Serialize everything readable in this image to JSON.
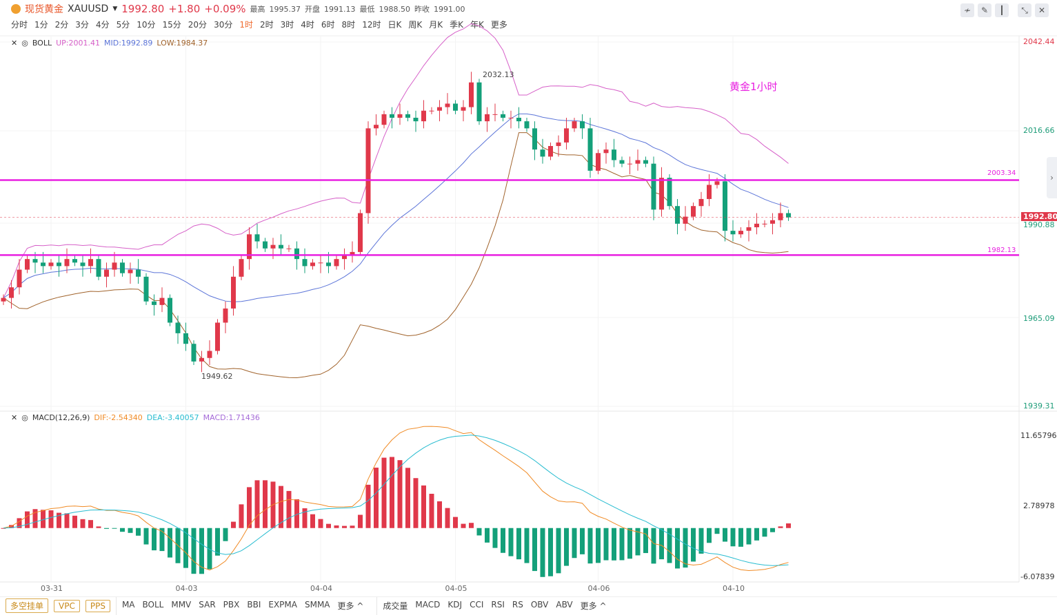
{
  "header": {
    "name": "现货黄金",
    "symbol": "XAUUSD",
    "price": "1992.80",
    "change": "+1.80",
    "change_pct": "+0.09%",
    "high_label": "最高",
    "high": "1995.37",
    "open_label": "开盘",
    "open": "1991.13",
    "low_label": "最低",
    "low": "1988.50",
    "prev_label": "昨收",
    "prev": "1991.00"
  },
  "timeframes": [
    "分时",
    "1分",
    "2分",
    "3分",
    "4分",
    "5分",
    "10分",
    "15分",
    "20分",
    "30分",
    "1时",
    "2时",
    "3时",
    "4时",
    "6时",
    "8时",
    "12时",
    "日K",
    "周K",
    "月K",
    "季K",
    "年K",
    "更多"
  ],
  "active_timeframe": "1时",
  "toolbar_icons": [
    "indicator-icon",
    "draw-icon",
    "candle-type-icon",
    "collapse-icon",
    "close-icon"
  ],
  "boll": {
    "name": "BOLL",
    "up": "UP:2001.41",
    "mid": "MID:1992.89",
    "low": "LOW:1984.37",
    "colors": {
      "up": "#d65fc8",
      "mid": "#5b74d8",
      "low": "#a0622a"
    }
  },
  "macd": {
    "name": "MACD(12,26,9)",
    "dif": "DIF:-2.54340",
    "dea": "DEA:-3.40057",
    "macd": "MACD:1.71436",
    "colors": {
      "dif": "#f08a24",
      "dea": "#27bcd0",
      "macd": "#a56ad8"
    }
  },
  "price_axis": [
    "2042.44",
    "2016.66",
    "1990.88",
    "1965.09",
    "1939.31"
  ],
  "macd_axis": [
    "11.65796",
    "2.78978",
    "-6.07839"
  ],
  "current_price_tag": "1992.80",
  "hlines": [
    {
      "value": 2003.34,
      "label": "2003.34"
    },
    {
      "value": 1982.13,
      "label": "1982.13"
    }
  ],
  "annotation": "黄金1小时",
  "markers": {
    "high": "2032.13",
    "low": "1949.62"
  },
  "date_labels": [
    {
      "label": "03-31",
      "index": 6
    },
    {
      "label": "04-03",
      "index": 23
    },
    {
      "label": "04-04",
      "index": 40
    },
    {
      "label": "04-05",
      "index": 57
    },
    {
      "label": "04-06",
      "index": 75
    },
    {
      "label": "04-10",
      "index": 92
    }
  ],
  "bottom": {
    "order_buttons": [
      "多空挂单",
      "VPC",
      "PPS"
    ],
    "main_indicators": [
      "MA",
      "BOLL",
      "MMV",
      "SAR",
      "PBX",
      "BBI",
      "EXPMA",
      "SMMA",
      "更多 ^"
    ],
    "sub_indicators": [
      "成交量",
      "MACD",
      "KDJ",
      "CCI",
      "RSI",
      "RS",
      "OBV",
      "ABV",
      "更多 ^"
    ]
  },
  "colors": {
    "up": "#e0384a",
    "down": "#14a07a",
    "hline": "#e81ee0"
  },
  "chart_data": {
    "type": "candlestick",
    "ylim": [
      1939.31,
      2042.44
    ],
    "macd_ylim": [
      -6.07839,
      11.65796
    ],
    "closes": [
      1970,
      1973,
      1978,
      1981,
      1980,
      1979,
      1980,
      1979,
      1981,
      1980,
      1979,
      1981,
      1976,
      1978,
      1980,
      1977,
      1978,
      1976,
      1969,
      1968,
      1970,
      1963,
      1960,
      1957,
      1952,
      1953,
      1955,
      1963,
      1967,
      1976,
      1981,
      1988,
      1986,
      1984,
      1985,
      1984,
      1984,
      1981,
      1979,
      1980,
      1980,
      1979,
      1981,
      1982,
      1983,
      1994,
      2018,
      2019,
      2022,
      2021,
      2022,
      2021,
      2020,
      2023,
      2023,
      2024,
      2025,
      2023,
      2024,
      2031,
      2020,
      2022,
      2022,
      2021,
      2021,
      2020,
      2018,
      2012,
      2010,
      2013,
      2014,
      2018,
      2020,
      2018,
      2006,
      2011,
      2012,
      2009,
      2008,
      2008,
      2009,
      2008,
      1995,
      2004,
      1996,
      1991,
      1993,
      1996,
      1998,
      2002,
      2003,
      1989,
      1988,
      1989,
      1990,
      1991,
      1991,
      1992,
      1994,
      1992.8
    ]
  }
}
